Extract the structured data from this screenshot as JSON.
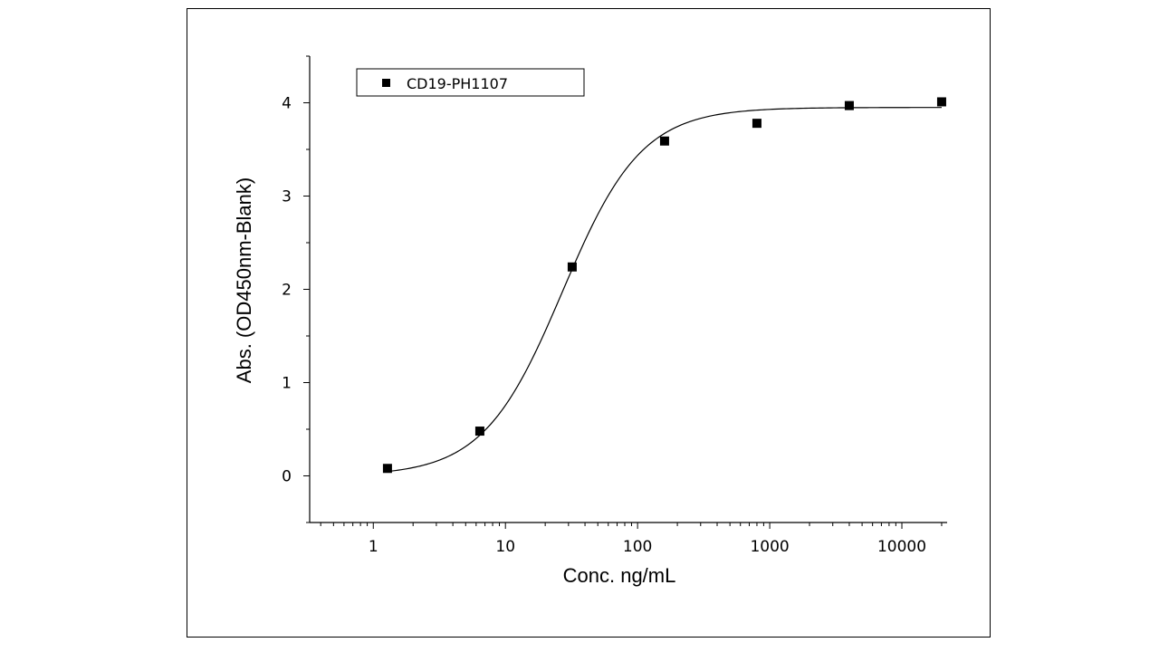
{
  "chart_data": {
    "type": "scatter",
    "title": "",
    "xlabel": "Conc. ng/mL",
    "ylabel": "Abs. (OD450nm-Blank)",
    "x_scale": "log",
    "xlim": [
      0.33,
      22000
    ],
    "ylim": [
      -0.5,
      4.5
    ],
    "x_ticks": [
      {
        "value": 1,
        "label": "1"
      },
      {
        "value": 10,
        "label": "10"
      },
      {
        "value": 100,
        "label": "100"
      },
      {
        "value": 1000,
        "label": "1000"
      },
      {
        "value": 10000,
        "label": "10000"
      }
    ],
    "y_ticks": [
      {
        "value": 0,
        "label": "0"
      },
      {
        "value": 1,
        "label": "1"
      },
      {
        "value": 2,
        "label": "2"
      },
      {
        "value": 3,
        "label": "3"
      },
      {
        "value": 4,
        "label": "4"
      }
    ],
    "grid": false,
    "legend_position": "top-left",
    "series": [
      {
        "name": "CD19-PH1107",
        "marker": "square",
        "color": "#000000",
        "points": [
          {
            "x": 1.28,
            "y": 0.08
          },
          {
            "x": 6.4,
            "y": 0.48
          },
          {
            "x": 32,
            "y": 2.24
          },
          {
            "x": 160,
            "y": 3.59
          },
          {
            "x": 800,
            "y": 3.78
          },
          {
            "x": 4000,
            "y": 3.97
          },
          {
            "x": 20000,
            "y": 4.01
          }
        ]
      }
    ],
    "fit_curve": {
      "type": "4PL",
      "color": "#000000",
      "bottom": 0.0,
      "top": 3.95,
      "ec50": 27,
      "hill": 1.45
    }
  }
}
